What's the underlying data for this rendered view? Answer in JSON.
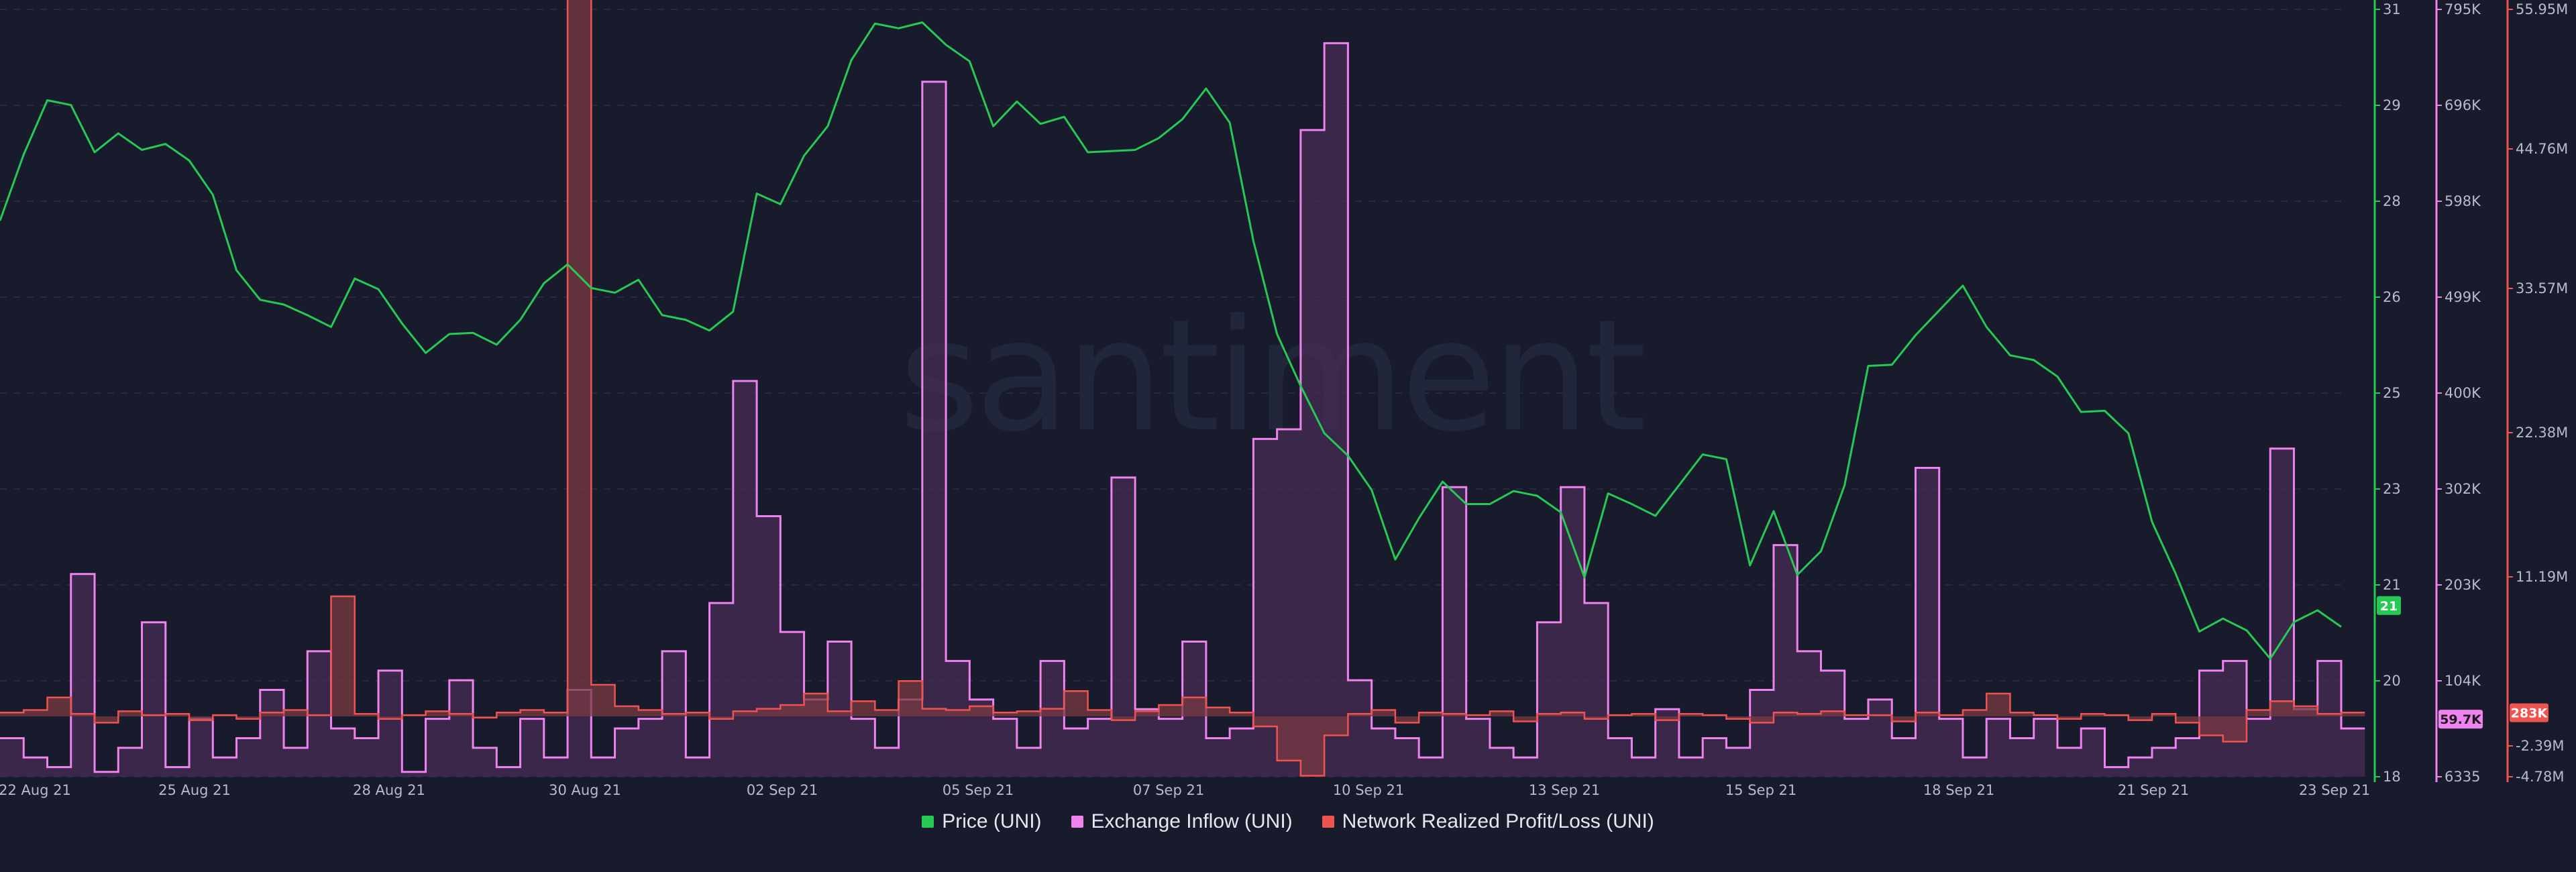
{
  "chart_data": {
    "type": "line",
    "watermark": "santiment",
    "x_labels": [
      "22 Aug 21",
      "25 Aug 21",
      "28 Aug 21",
      "30 Aug 21",
      "02 Sep 21",
      "05 Sep 21",
      "07 Sep 21",
      "10 Sep 21",
      "13 Sep 21",
      "15 Sep 21",
      "18 Sep 21",
      "21 Sep 21",
      "23 Sep 21"
    ],
    "axes": {
      "price": {
        "ticks": [
          "31",
          "29",
          "28",
          "26",
          "25",
          "23",
          "21",
          "20",
          "18"
        ],
        "range": [
          18,
          31
        ],
        "color": "#26c953"
      },
      "inflow": {
        "ticks": [
          "795K",
          "696K",
          "598K",
          "499K",
          "400K",
          "302K",
          "203K",
          "104K",
          "6335"
        ],
        "range": [
          6335,
          795000
        ],
        "color": "#ee82ee"
      },
      "pnl": {
        "ticks": [
          "55.95M",
          "44.76M",
          "33.57M",
          "22.38M",
          "11.19M",
          "-2.39M",
          "-4.78M"
        ],
        "range": [
          -4.78,
          55.95
        ],
        "color": "#ef5350"
      }
    },
    "current_values": {
      "price": "21",
      "inflow": "59.7K",
      "pnl": "283K"
    },
    "series": [
      {
        "name": "Price (UNI)",
        "color": "#26c953",
        "axis": "price",
        "unit": "USD",
        "values": [
          27.6,
          28.6,
          29.4,
          29.2,
          28.7,
          28.9,
          28.5,
          28.9,
          28.5,
          27.8,
          26.4,
          26.2,
          26.0,
          25.7,
          25.8,
          26.5,
          26.2,
          25.5,
          25.3,
          25.5,
          25.4,
          25.5,
          25.8,
          26.3,
          26.5,
          26.4,
          26.2,
          26.3,
          26.0,
          25.8,
          25.5,
          25.7,
          28.0,
          27.7,
          28.4,
          29.2,
          30.2,
          30.7,
          30.5,
          30.9,
          30.4,
          30.0,
          29.2,
          29.5,
          29.0,
          29.0,
          28.7,
          28.6,
          28.5,
          29.0,
          29.2,
          29.6,
          28.9,
          27.2,
          25.5,
          24.5,
          24.0,
          23.5,
          22.8,
          21.5,
          22.5,
          23.0,
          22.5,
          22.8,
          22.9,
          22.7,
          22.3,
          21.5,
          22.8,
          22.5,
          22.6,
          23.0,
          23.4,
          23.2,
          21.7,
          22.5,
          21.3,
          22.0,
          23.0,
          24.9,
          24.8,
          25.6,
          25.9,
          26.2,
          25.8,
          25.2,
          25.0,
          24.6,
          24.3,
          24.2,
          23.7,
          22.5,
          21.5,
          20.4,
          20.5,
          20.6,
          20.0,
          20.5,
          21.0,
          20.6
        ]
      },
      {
        "name": "Exchange Inflow (UNI)",
        "color": "#ee82ee",
        "axis": "inflow",
        "unit": "UNI",
        "values": [
          40,
          20,
          10,
          210,
          5,
          30,
          160,
          10,
          60,
          20,
          40,
          90,
          30,
          130,
          50,
          40,
          110,
          5,
          60,
          100,
          30,
          10,
          60,
          20,
          90,
          20,
          50,
          60,
          130,
          20,
          180,
          410,
          270,
          150,
          80,
          140,
          60,
          30,
          80,
          720,
          120,
          80,
          60,
          30,
          120,
          50,
          60,
          310,
          70,
          60,
          140,
          40,
          50,
          350,
          360,
          670,
          760,
          100,
          50,
          40,
          20,
          300,
          60,
          30,
          20,
          160,
          300,
          180,
          40,
          20,
          70,
          20,
          40,
          30,
          90,
          240,
          130,
          110,
          60,
          80,
          40,
          320,
          60,
          20,
          60,
          40,
          60,
          30,
          50,
          10,
          20,
          30,
          40,
          110,
          120,
          60,
          340,
          70,
          120,
          50
        ]
      },
      {
        "name": "Network Realized Profit/Loss (UNI)",
        "color": "#ef5350",
        "axis": "pnl",
        "unit": "UNI",
        "values": [
          0.3,
          0.5,
          1.5,
          0.2,
          -0.5,
          0.4,
          0.1,
          0.2,
          -0.3,
          0.1,
          -0.2,
          0.3,
          0.5,
          0.1,
          9.5,
          0.2,
          -0.2,
          0.1,
          0.4,
          0.2,
          -0.1,
          0.3,
          0.5,
          0.3,
          57.3,
          2.5,
          0.8,
          0.5,
          0.2,
          0.3,
          -0.2,
          0.4,
          0.6,
          0.9,
          1.8,
          0.4,
          1.2,
          0.5,
          2.8,
          0.6,
          0.5,
          0.8,
          0.3,
          0.4,
          0.6,
          2.0,
          0.5,
          -0.3,
          0.4,
          0.9,
          1.5,
          0.7,
          0.3,
          -0.8,
          -3.5,
          -4.7,
          -1.5,
          0.2,
          0.5,
          -0.5,
          0.3,
          0.2,
          0.1,
          0.4,
          -0.4,
          0.2,
          0.3,
          -0.2,
          0.1,
          0.2,
          -0.3,
          0.2,
          0.1,
          -0.2,
          -0.5,
          0.3,
          0.2,
          0.4,
          0.1,
          0.1,
          -0.4,
          0.3,
          0.1,
          0.5,
          1.8,
          0.3,
          0.1,
          -0.2,
          0.2,
          0.1,
          -0.3,
          0.2,
          -0.5,
          -1.5,
          -2.0,
          0.5,
          1.2,
          0.8,
          0.2,
          0.3
        ]
      }
    ]
  }
}
